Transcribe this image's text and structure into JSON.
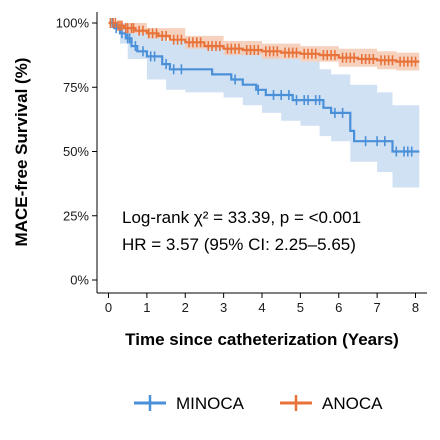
{
  "chart_data": {
    "type": "line",
    "subtype": "kaplan-meier",
    "xlabel": "Time since catheterization (Years)",
    "ylabel": "MACE-free Survival (%)",
    "xlim": [
      -0.3,
      8.3
    ],
    "ylim": [
      0,
      100
    ],
    "x_ticks": [
      "0",
      "1",
      "2",
      "3",
      "4",
      "5",
      "6",
      "7",
      "8"
    ],
    "y_ticks": [
      "0%",
      "25%",
      "50%",
      "75%",
      "100%"
    ],
    "grid": false,
    "legend_position": "bottom",
    "annotations": [
      "Log-rank χ² = 33.39, p = <0.001",
      "HR = 3.57 (95% CI: 2.25–5.65)"
    ],
    "series": [
      {
        "name": "MINOCA",
        "color": "#4a90d9",
        "ci_color": "#c5d9f1",
        "steps": [
          [
            0,
            100
          ],
          [
            0.15,
            98
          ],
          [
            0.3,
            96
          ],
          [
            0.45,
            94
          ],
          [
            0.6,
            91
          ],
          [
            0.75,
            89
          ],
          [
            1.0,
            87
          ],
          [
            1.4,
            84
          ],
          [
            1.6,
            82
          ],
          [
            2.7,
            80
          ],
          [
            3.2,
            78
          ],
          [
            3.5,
            76
          ],
          [
            3.85,
            74
          ],
          [
            4.1,
            72
          ],
          [
            4.8,
            70
          ],
          [
            5.6,
            67
          ],
          [
            5.8,
            65
          ],
          [
            6.3,
            58
          ],
          [
            6.4,
            54
          ],
          [
            7.4,
            50
          ],
          [
            8.1,
            50
          ]
        ],
        "ci_upper": [
          [
            0,
            100
          ],
          [
            0.3,
            100
          ],
          [
            0.5,
            98
          ],
          [
            1.0,
            96
          ],
          [
            1.5,
            93
          ],
          [
            2.0,
            92
          ],
          [
            3.0,
            91
          ],
          [
            3.5,
            89
          ],
          [
            4.0,
            87
          ],
          [
            4.5,
            86
          ],
          [
            5.0,
            85
          ],
          [
            5.5,
            82
          ],
          [
            5.8,
            80
          ],
          [
            6.3,
            76
          ],
          [
            7.0,
            73
          ],
          [
            7.4,
            68
          ],
          [
            8.1,
            68
          ]
        ],
        "ci_lower": [
          [
            0,
            100
          ],
          [
            0.3,
            92
          ],
          [
            0.5,
            86
          ],
          [
            1.0,
            78
          ],
          [
            1.5,
            74
          ],
          [
            2.0,
            73
          ],
          [
            3.0,
            71
          ],
          [
            3.5,
            68
          ],
          [
            4.0,
            65
          ],
          [
            4.5,
            62
          ],
          [
            5.0,
            60
          ],
          [
            5.5,
            56
          ],
          [
            5.8,
            54
          ],
          [
            6.3,
            46
          ],
          [
            7.0,
            42
          ],
          [
            7.4,
            36
          ],
          [
            8.1,
            36
          ]
        ],
        "censor_x": [
          0.1,
          0.2,
          0.35,
          0.5,
          0.55,
          0.7,
          0.9,
          1.1,
          1.2,
          1.5,
          1.7,
          1.9,
          3.3,
          3.9,
          4.3,
          4.5,
          4.7,
          4.9,
          5.1,
          5.2,
          5.4,
          5.5,
          5.9,
          6.1,
          6.7,
          7.0,
          7.2,
          7.5,
          7.7,
          7.8,
          7.9
        ]
      },
      {
        "name": "ANOCA",
        "color": "#e8733a",
        "ci_color": "#f5c9b2",
        "steps": [
          [
            0,
            100
          ],
          [
            0.2,
            99
          ],
          [
            0.4,
            98
          ],
          [
            0.7,
            97
          ],
          [
            1.0,
            96
          ],
          [
            1.3,
            95
          ],
          [
            1.6,
            93.5
          ],
          [
            2.0,
            92.5
          ],
          [
            2.5,
            91
          ],
          [
            3.0,
            90
          ],
          [
            3.5,
            89.5
          ],
          [
            4.0,
            89
          ],
          [
            4.5,
            88.5
          ],
          [
            5.0,
            88
          ],
          [
            5.5,
            87.5
          ],
          [
            6.0,
            86.5
          ],
          [
            6.5,
            86
          ],
          [
            7.0,
            85.5
          ],
          [
            7.5,
            85
          ],
          [
            8.1,
            85
          ]
        ],
        "ci_upper": [
          [
            0,
            100
          ],
          [
            0.5,
            100
          ],
          [
            1.0,
            98
          ],
          [
            2.0,
            95
          ],
          [
            3.0,
            93
          ],
          [
            4.0,
            92
          ],
          [
            5.0,
            91
          ],
          [
            6.0,
            90
          ],
          [
            7.0,
            89
          ],
          [
            7.5,
            88.5
          ],
          [
            8.1,
            88.5
          ]
        ],
        "ci_lower": [
          [
            0,
            100
          ],
          [
            0.5,
            96
          ],
          [
            1.0,
            94
          ],
          [
            2.0,
            90
          ],
          [
            3.0,
            87.5
          ],
          [
            4.0,
            86
          ],
          [
            5.0,
            85
          ],
          [
            6.0,
            83
          ],
          [
            7.0,
            82
          ],
          [
            7.5,
            81.5
          ],
          [
            8.1,
            81.5
          ]
        ],
        "censor_x": [
          0.05,
          0.12,
          0.18,
          0.25,
          0.3,
          0.35,
          0.45,
          0.5,
          0.6,
          0.65,
          0.8,
          0.9,
          1.05,
          1.15,
          1.25,
          1.4,
          1.5,
          1.7,
          1.8,
          1.9,
          2.1,
          2.2,
          2.3,
          2.4,
          2.6,
          2.7,
          2.8,
          2.9,
          3.1,
          3.2,
          3.3,
          3.4,
          3.6,
          3.7,
          3.8,
          3.9,
          4.1,
          4.2,
          4.3,
          4.4,
          4.6,
          4.7,
          4.8,
          4.9,
          5.1,
          5.2,
          5.3,
          5.4,
          5.6,
          5.7,
          5.8,
          5.9,
          6.1,
          6.2,
          6.3,
          6.4,
          6.6,
          6.7,
          6.8,
          6.9,
          7.1,
          7.2,
          7.3,
          7.4,
          7.6,
          7.7,
          7.8,
          7.9,
          8.0
        ]
      }
    ]
  }
}
